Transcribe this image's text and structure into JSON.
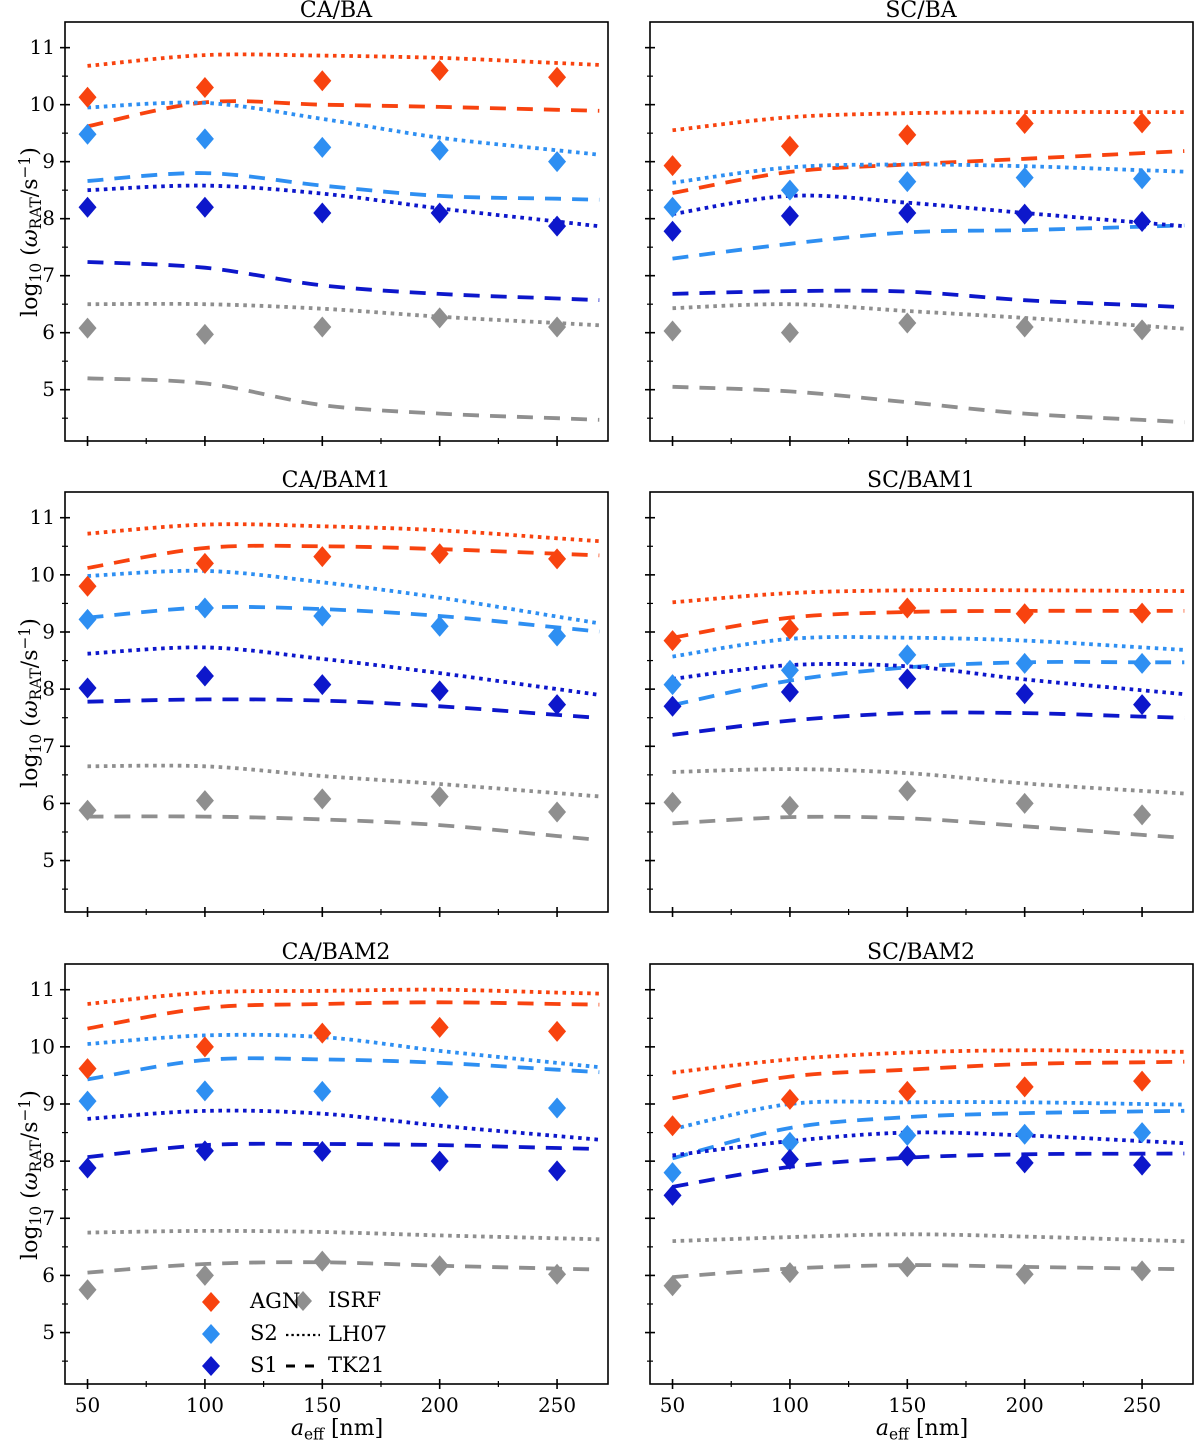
{
  "colors": {
    "agn": "#f8430f",
    "s2": "#2e8ff2",
    "s1": "#0d17cb",
    "isrf": "#8f8f8f",
    "legend_line": "#000000",
    "axis": "#000000",
    "background": "#ffffff"
  },
  "figure": {
    "ylabel": "log10 (wRAT/s-1)",
    "xlabel": "aeff [nm]",
    "ylabel_parts": [
      {
        "t": "log"
      },
      {
        "t": "10",
        "s": "sub"
      },
      {
        "t": " ("
      },
      {
        "t": "ω",
        "s": "i"
      },
      {
        "t": "RAT",
        "s": "sub"
      },
      {
        "t": "/s"
      },
      {
        "t": "−1",
        "s": "sup"
      },
      {
        "t": ")"
      }
    ],
    "xlabel_parts": [
      {
        "t": "a",
        "s": "i"
      },
      {
        "t": "eff",
        "s": "sub"
      },
      {
        "t": " [nm]"
      }
    ]
  },
  "chart_data": {
    "type": "line",
    "x": [
      50,
      100,
      150,
      200,
      250
    ],
    "xlim": [
      40.4,
      271.7
    ],
    "ylim": [
      4.1,
      11.45
    ],
    "xticks": [
      50,
      100,
      150,
      200,
      250
    ],
    "yticks": [
      5,
      6,
      7,
      8,
      9,
      10,
      11
    ],
    "x_minor": [
      75,
      125,
      175,
      225
    ],
    "y_minor_step": 0.5,
    "grid": false,
    "legend_position": "lower center of bottom-left subplot",
    "subplots": [
      {
        "title": "CA/BA",
        "lines": [
          {
            "name": "AGN-LH07",
            "color": "agn",
            "style": "dotted",
            "values": [
              10.68,
              10.87,
              10.86,
              10.82,
              10.73
            ]
          },
          {
            "name": "AGN-TK21",
            "color": "agn",
            "style": "dashed",
            "values": [
              9.62,
              10.04,
              10.0,
              9.96,
              9.91
            ]
          },
          {
            "name": "S2-LH07",
            "color": "s2",
            "style": "dotted",
            "values": [
              9.95,
              10.03,
              9.75,
              9.42,
              9.2
            ]
          },
          {
            "name": "S2-TK21",
            "color": "s2",
            "style": "dashed",
            "values": [
              8.66,
              8.8,
              8.58,
              8.4,
              8.35
            ]
          },
          {
            "name": "S1-LH07",
            "color": "s1",
            "style": "dotted",
            "values": [
              8.5,
              8.58,
              8.44,
              8.18,
              7.95
            ]
          },
          {
            "name": "S1-TK21",
            "color": "s1",
            "style": "dashed",
            "values": [
              7.24,
              7.14,
              6.83,
              6.68,
              6.6
            ]
          },
          {
            "name": "ISRF-LH07",
            "color": "isrf",
            "style": "dotted",
            "values": [
              6.5,
              6.5,
              6.42,
              6.28,
              6.17
            ]
          },
          {
            "name": "ISRF-TK21",
            "color": "isrf",
            "style": "dashed",
            "values": [
              5.2,
              5.11,
              4.73,
              4.58,
              4.5
            ]
          }
        ],
        "scatter": [
          {
            "name": "AGN",
            "color": "agn",
            "values": [
              10.13,
              10.3,
              10.42,
              10.6,
              10.48
            ]
          },
          {
            "name": "S2",
            "color": "s2",
            "values": [
              9.48,
              9.4,
              9.25,
              9.2,
              9.0
            ]
          },
          {
            "name": "S1",
            "color": "s1",
            "values": [
              8.2,
              8.2,
              8.1,
              8.1,
              7.87
            ]
          },
          {
            "name": "ISRF",
            "color": "isrf",
            "values": [
              6.08,
              5.97,
              6.1,
              6.26,
              6.1
            ]
          }
        ]
      },
      {
        "title": "SC/BA",
        "lines": [
          {
            "name": "AGN-LH07",
            "color": "agn",
            "style": "dotted",
            "values": [
              9.55,
              9.78,
              9.85,
              9.87,
              9.87
            ]
          },
          {
            "name": "AGN-TK21",
            "color": "agn",
            "style": "dashed",
            "values": [
              8.45,
              8.82,
              8.95,
              9.05,
              9.15
            ]
          },
          {
            "name": "S2-LH07",
            "color": "s2",
            "style": "dotted",
            "values": [
              8.63,
              8.9,
              8.95,
              8.92,
              8.85
            ]
          },
          {
            "name": "S2-TK21",
            "color": "s2",
            "style": "dashed",
            "values": [
              7.3,
              7.56,
              7.76,
              7.8,
              7.86
            ]
          },
          {
            "name": "S1-LH07",
            "color": "s1",
            "style": "dotted",
            "values": [
              8.08,
              8.4,
              8.28,
              8.1,
              7.93
            ]
          },
          {
            "name": "S1-TK21",
            "color": "s1",
            "style": "dashed",
            "values": [
              6.68,
              6.73,
              6.72,
              6.57,
              6.48
            ]
          },
          {
            "name": "ISRF-LH07",
            "color": "isrf",
            "style": "dotted",
            "values": [
              6.43,
              6.5,
              6.38,
              6.26,
              6.12
            ]
          },
          {
            "name": "ISRF-TK21",
            "color": "isrf",
            "style": "dashed",
            "values": [
              5.05,
              4.97,
              4.78,
              4.58,
              4.47
            ]
          }
        ],
        "scatter": [
          {
            "name": "AGN",
            "color": "agn",
            "values": [
              8.93,
              9.27,
              9.47,
              9.67,
              9.68
            ]
          },
          {
            "name": "S2",
            "color": "s2",
            "values": [
              8.2,
              8.5,
              8.65,
              8.72,
              8.7
            ]
          },
          {
            "name": "S1",
            "color": "s1",
            "values": [
              7.78,
              8.05,
              8.1,
              8.08,
              7.95
            ]
          },
          {
            "name": "ISRF",
            "color": "isrf",
            "values": [
              6.03,
              6.0,
              6.17,
              6.1,
              6.05
            ]
          }
        ]
      },
      {
        "title": "CA/BAM1",
        "lines": [
          {
            "name": "AGN-LH07",
            "color": "agn",
            "style": "dotted",
            "values": [
              10.72,
              10.88,
              10.85,
              10.78,
              10.64
            ]
          },
          {
            "name": "AGN-TK21",
            "color": "agn",
            "style": "dashed",
            "values": [
              10.12,
              10.47,
              10.5,
              10.45,
              10.37
            ]
          },
          {
            "name": "S2-LH07",
            "color": "s2",
            "style": "dotted",
            "values": [
              9.98,
              10.07,
              9.87,
              9.6,
              9.27
            ]
          },
          {
            "name": "S2-TK21",
            "color": "s2",
            "style": "dashed",
            "values": [
              9.25,
              9.43,
              9.4,
              9.28,
              9.08
            ]
          },
          {
            "name": "S1-LH07",
            "color": "s1",
            "style": "dotted",
            "values": [
              8.62,
              8.73,
              8.53,
              8.28,
              8.0
            ]
          },
          {
            "name": "S1-TK21",
            "color": "s1",
            "style": "dashed",
            "values": [
              7.78,
              7.82,
              7.8,
              7.7,
              7.55
            ]
          },
          {
            "name": "ISRF-LH07",
            "color": "isrf",
            "style": "dotted",
            "values": [
              6.65,
              6.65,
              6.48,
              6.34,
              6.18
            ]
          },
          {
            "name": "ISRF-TK21",
            "color": "isrf",
            "style": "dashed",
            "values": [
              5.77,
              5.77,
              5.72,
              5.62,
              5.43
            ]
          }
        ],
        "scatter": [
          {
            "name": "AGN",
            "color": "agn",
            "values": [
              9.8,
              10.2,
              10.32,
              10.37,
              10.28
            ]
          },
          {
            "name": "S2",
            "color": "s2",
            "values": [
              9.22,
              9.42,
              9.28,
              9.1,
              8.93
            ]
          },
          {
            "name": "S1",
            "color": "s1",
            "values": [
              8.02,
              8.23,
              8.08,
              7.97,
              7.73
            ]
          },
          {
            "name": "ISRF",
            "color": "isrf",
            "values": [
              5.88,
              6.05,
              6.08,
              6.12,
              5.85
            ]
          }
        ]
      },
      {
        "title": "SC/BAM1",
        "lines": [
          {
            "name": "AGN-LH07",
            "color": "agn",
            "style": "dotted",
            "values": [
              9.52,
              9.68,
              9.73,
              9.73,
              9.72
            ]
          },
          {
            "name": "AGN-TK21",
            "color": "agn",
            "style": "dashed",
            "values": [
              8.9,
              9.25,
              9.35,
              9.37,
              9.37
            ]
          },
          {
            "name": "S2-LH07",
            "color": "s2",
            "style": "dotted",
            "values": [
              8.57,
              8.88,
              8.9,
              8.85,
              8.73
            ]
          },
          {
            "name": "S2-TK21",
            "color": "s2",
            "style": "dashed",
            "values": [
              7.72,
              8.15,
              8.38,
              8.47,
              8.47
            ]
          },
          {
            "name": "S1-LH07",
            "color": "s1",
            "style": "dotted",
            "values": [
              8.18,
              8.42,
              8.4,
              8.17,
              7.98
            ]
          },
          {
            "name": "S1-TK21",
            "color": "s1",
            "style": "dashed",
            "values": [
              7.2,
              7.45,
              7.58,
              7.58,
              7.52
            ]
          },
          {
            "name": "ISRF-LH07",
            "color": "isrf",
            "style": "dotted",
            "values": [
              6.55,
              6.6,
              6.53,
              6.35,
              6.22
            ]
          },
          {
            "name": "ISRF-TK21",
            "color": "isrf",
            "style": "dashed",
            "values": [
              5.65,
              5.76,
              5.74,
              5.6,
              5.45
            ]
          }
        ],
        "scatter": [
          {
            "name": "AGN",
            "color": "agn",
            "values": [
              8.85,
              9.05,
              9.42,
              9.32,
              9.33
            ]
          },
          {
            "name": "S2",
            "color": "s2",
            "values": [
              8.08,
              8.33,
              8.6,
              8.45,
              8.45
            ]
          },
          {
            "name": "S1",
            "color": "s1",
            "values": [
              7.7,
              7.95,
              8.18,
              7.92,
              7.73
            ]
          },
          {
            "name": "ISRF",
            "color": "isrf",
            "values": [
              6.02,
              5.95,
              6.22,
              6.0,
              5.8
            ]
          }
        ]
      },
      {
        "title": "CA/BAM2",
        "lines": [
          {
            "name": "AGN-LH07",
            "color": "agn",
            "style": "dotted",
            "values": [
              10.75,
              10.95,
              10.98,
              11.0,
              10.95
            ]
          },
          {
            "name": "AGN-TK21",
            "color": "agn",
            "style": "dashed",
            "values": [
              10.32,
              10.68,
              10.75,
              10.78,
              10.75
            ]
          },
          {
            "name": "S2-LH07",
            "color": "s2",
            "style": "dotted",
            "values": [
              10.05,
              10.2,
              10.17,
              9.93,
              9.72
            ]
          },
          {
            "name": "S2-TK21",
            "color": "s2",
            "style": "dashed",
            "values": [
              9.43,
              9.77,
              9.78,
              9.72,
              9.6
            ]
          },
          {
            "name": "S1-LH07",
            "color": "s1",
            "style": "dotted",
            "values": [
              8.74,
              8.88,
              8.83,
              8.62,
              8.44
            ]
          },
          {
            "name": "S1-TK21",
            "color": "s1",
            "style": "dashed",
            "values": [
              8.07,
              8.28,
              8.3,
              8.28,
              8.23
            ]
          },
          {
            "name": "ISRF-LH07",
            "color": "isrf",
            "style": "dotted",
            "values": [
              6.75,
              6.78,
              6.76,
              6.7,
              6.65
            ]
          },
          {
            "name": "ISRF-TK21",
            "color": "isrf",
            "style": "dashed",
            "values": [
              6.05,
              6.2,
              6.23,
              6.17,
              6.12
            ]
          }
        ],
        "scatter": [
          {
            "name": "AGN",
            "color": "agn",
            "values": [
              9.62,
              10.0,
              10.24,
              10.34,
              10.27
            ]
          },
          {
            "name": "S2",
            "color": "s2",
            "values": [
              9.05,
              9.23,
              9.22,
              9.12,
              8.93
            ]
          },
          {
            "name": "S1",
            "color": "s1",
            "values": [
              7.88,
              8.18,
              8.17,
              8.0,
              7.83
            ]
          },
          {
            "name": "ISRF",
            "color": "isrf",
            "values": [
              5.75,
              6.0,
              6.25,
              6.17,
              6.02
            ]
          }
        ]
      },
      {
        "title": "SC/BAM2",
        "lines": [
          {
            "name": "AGN-LH07",
            "color": "agn",
            "style": "dotted",
            "values": [
              9.55,
              9.78,
              9.9,
              9.94,
              9.92
            ]
          },
          {
            "name": "AGN-TK21",
            "color": "agn",
            "style": "dashed",
            "values": [
              9.1,
              9.48,
              9.6,
              9.7,
              9.73
            ]
          },
          {
            "name": "S2-LH07",
            "color": "s2",
            "style": "dotted",
            "values": [
              8.56,
              9.0,
              9.03,
              9.03,
              9.0
            ]
          },
          {
            "name": "S2-TK21",
            "color": "s2",
            "style": "dashed",
            "values": [
              8.05,
              8.58,
              8.77,
              8.84,
              8.87
            ]
          },
          {
            "name": "S1-LH07",
            "color": "s1",
            "style": "dotted",
            "values": [
              8.1,
              8.35,
              8.5,
              8.45,
              8.35
            ]
          },
          {
            "name": "S1-TK21",
            "color": "s1",
            "style": "dashed",
            "values": [
              7.55,
              7.9,
              8.06,
              8.12,
              8.13
            ]
          },
          {
            "name": "ISRF-LH07",
            "color": "isrf",
            "style": "dotted",
            "values": [
              6.6,
              6.67,
              6.72,
              6.68,
              6.62
            ]
          },
          {
            "name": "ISRF-TK21",
            "color": "isrf",
            "style": "dashed",
            "values": [
              5.97,
              6.12,
              6.18,
              6.15,
              6.12
            ]
          }
        ],
        "scatter": [
          {
            "name": "AGN",
            "color": "agn",
            "values": [
              8.62,
              9.08,
              9.22,
              9.3,
              9.4
            ]
          },
          {
            "name": "S2",
            "color": "s2",
            "values": [
              7.8,
              8.33,
              8.45,
              8.47,
              8.5
            ]
          },
          {
            "name": "S1",
            "color": "s1",
            "values": [
              7.4,
              8.03,
              8.09,
              7.97,
              7.93
            ]
          },
          {
            "name": "ISRF",
            "color": "isrf",
            "values": [
              5.82,
              6.05,
              6.15,
              6.02,
              6.08
            ]
          }
        ]
      }
    ],
    "legend": {
      "markers": [
        {
          "label": "AGN",
          "color": "agn"
        },
        {
          "label": "S2",
          "color": "s2"
        },
        {
          "label": "S1",
          "color": "s1"
        },
        {
          "label": "ISRF",
          "color": "isrf"
        }
      ],
      "lines": [
        {
          "label": "LH07",
          "style": "dotted"
        },
        {
          "label": "TK21",
          "style": "dashed"
        }
      ]
    }
  }
}
